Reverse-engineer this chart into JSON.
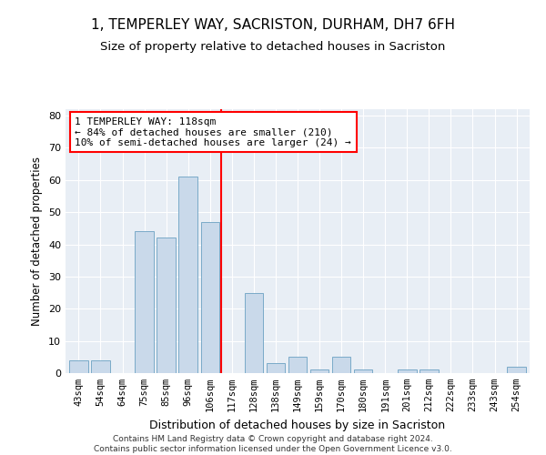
{
  "title": "1, TEMPERLEY WAY, SACRISTON, DURHAM, DH7 6FH",
  "subtitle": "Size of property relative to detached houses in Sacriston",
  "xlabel": "Distribution of detached houses by size in Sacriston",
  "ylabel": "Number of detached properties",
  "bin_labels": [
    "43sqm",
    "54sqm",
    "64sqm",
    "75sqm",
    "85sqm",
    "96sqm",
    "106sqm",
    "117sqm",
    "128sqm",
    "138sqm",
    "149sqm",
    "159sqm",
    "170sqm",
    "180sqm",
    "191sqm",
    "201sqm",
    "212sqm",
    "222sqm",
    "233sqm",
    "243sqm",
    "254sqm"
  ],
  "bar_heights": [
    4,
    4,
    0,
    44,
    42,
    61,
    47,
    0,
    25,
    3,
    5,
    1,
    5,
    1,
    0,
    1,
    1,
    0,
    0,
    0,
    2
  ],
  "bar_color": "#c9d9ea",
  "bar_edge_color": "#7aaac8",
  "annotation_text": "1 TEMPERLEY WAY: 118sqm\n← 84% of detached houses are smaller (210)\n10% of semi-detached houses are larger (24) →",
  "annotation_box_color": "white",
  "annotation_box_edge_color": "red",
  "vline_color": "red",
  "ylim": [
    0,
    82
  ],
  "yticks": [
    0,
    10,
    20,
    30,
    40,
    50,
    60,
    70,
    80
  ],
  "background_color": "#e8eef5",
  "footer_line1": "Contains HM Land Registry data © Crown copyright and database right 2024.",
  "footer_line2": "Contains public sector information licensed under the Open Government Licence v3.0.",
  "title_fontsize": 11,
  "xlabel_fontsize": 9,
  "ylabel_fontsize": 8.5
}
